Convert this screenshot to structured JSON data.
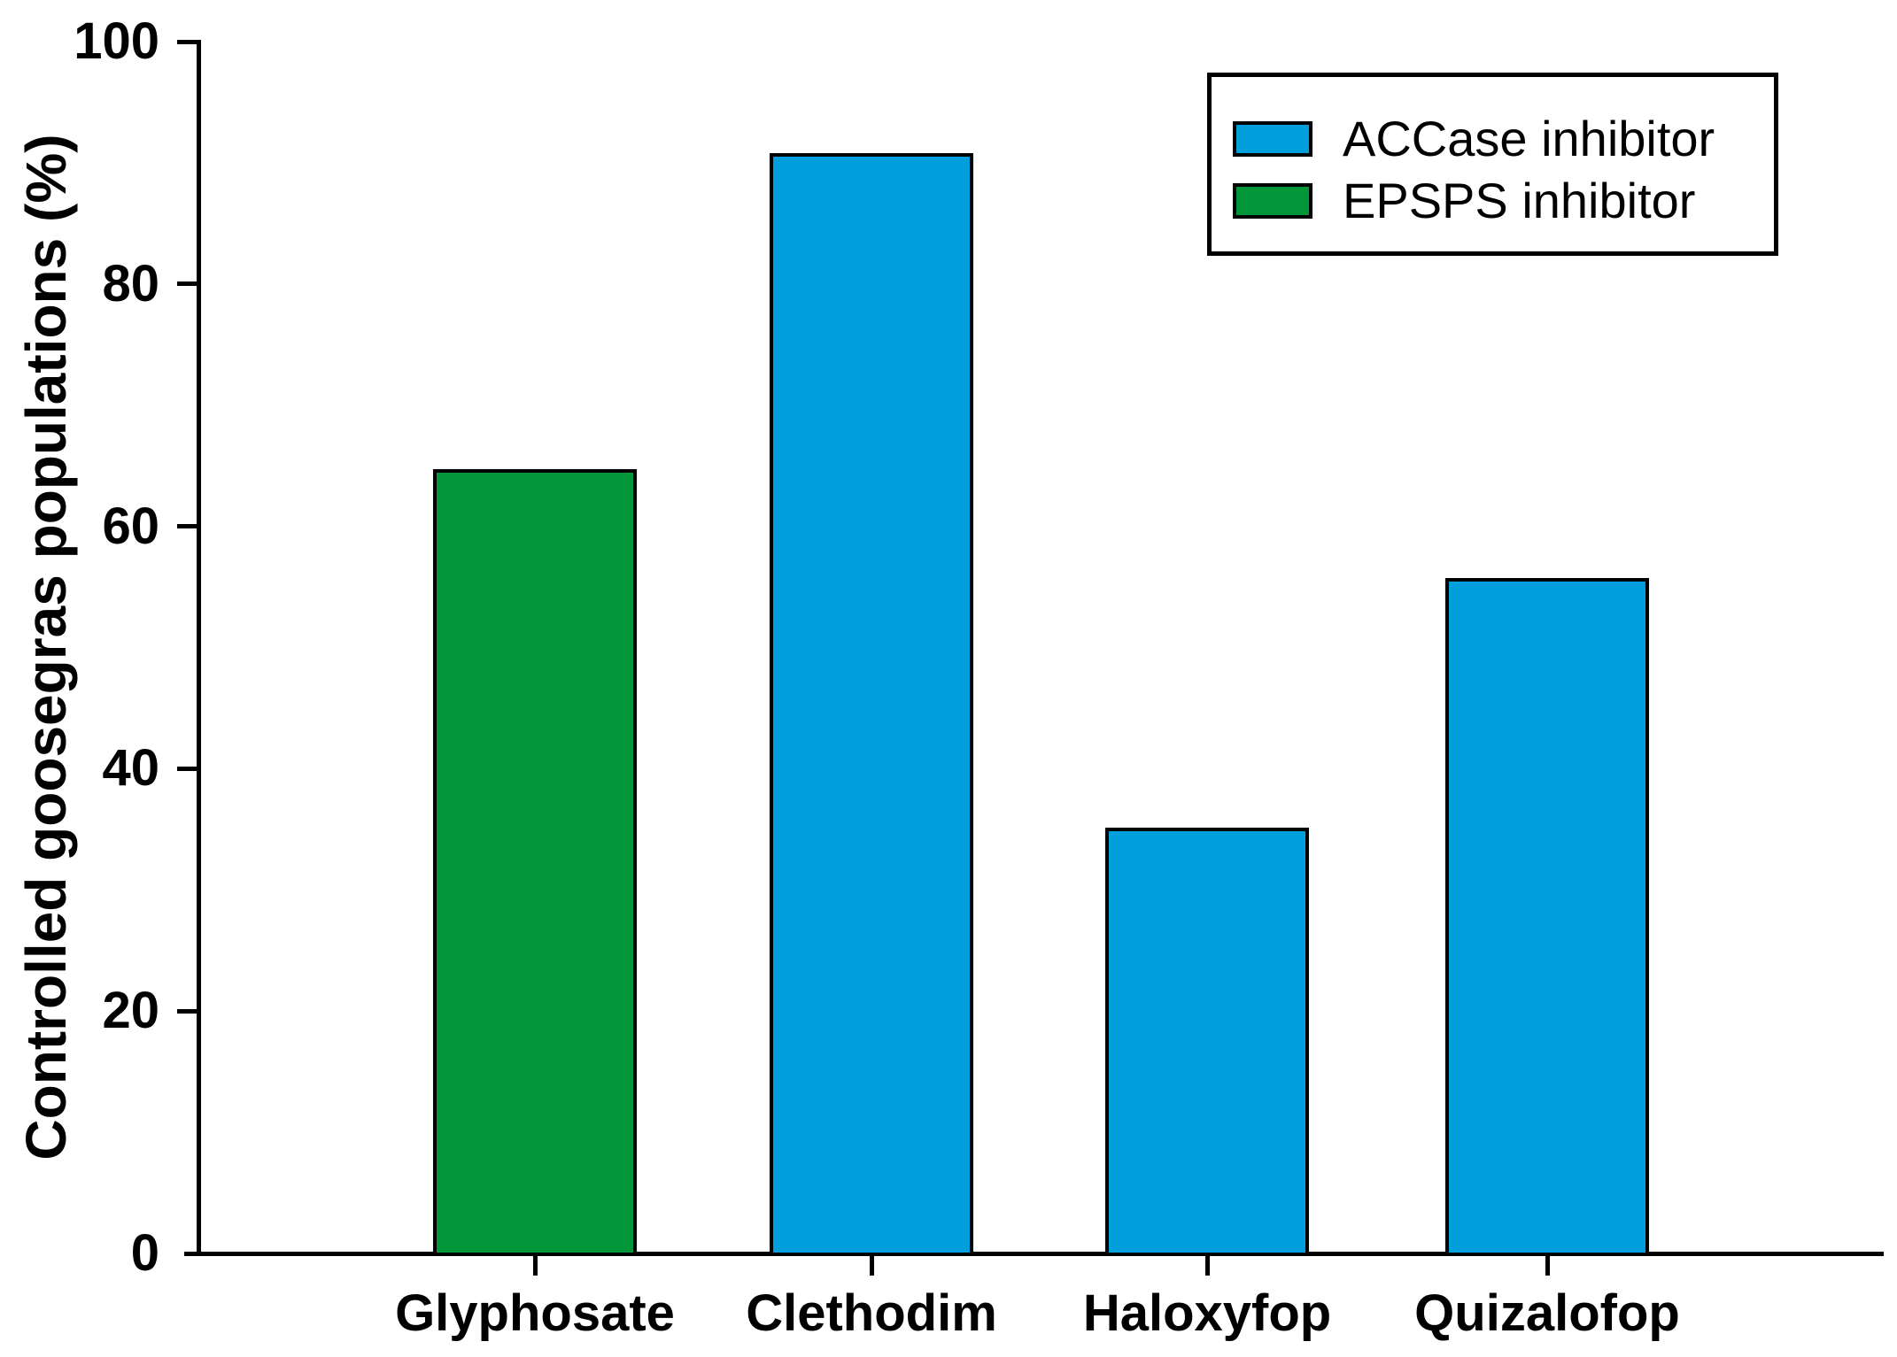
{
  "chart_data": {
    "type": "bar",
    "title": "",
    "ylabel": "Controlled goosegras populations (%)",
    "xlabel": "",
    "ylim": [
      0,
      100
    ],
    "yticks": [
      0,
      20,
      40,
      60,
      80,
      100
    ],
    "categories": [
      "Glyphosate",
      "Clethodim",
      "Haloxyfop",
      "Quizalofop"
    ],
    "values": [
      64.7,
      90.8,
      35.1,
      55.7
    ],
    "bar_groups": [
      "EPSPS inhibitor",
      "ACCase inhibitor",
      "ACCase inhibitor",
      "ACCase inhibitor"
    ],
    "legend": [
      {
        "label": "ACCase inhibitor",
        "color": "#009FDB"
      },
      {
        "label": "EPSPS inhibitor",
        "color": "#009639"
      }
    ],
    "legend_position": "top-right",
    "grid": false,
    "axis_color": "#000000",
    "bar_border_color": "#000000"
  }
}
